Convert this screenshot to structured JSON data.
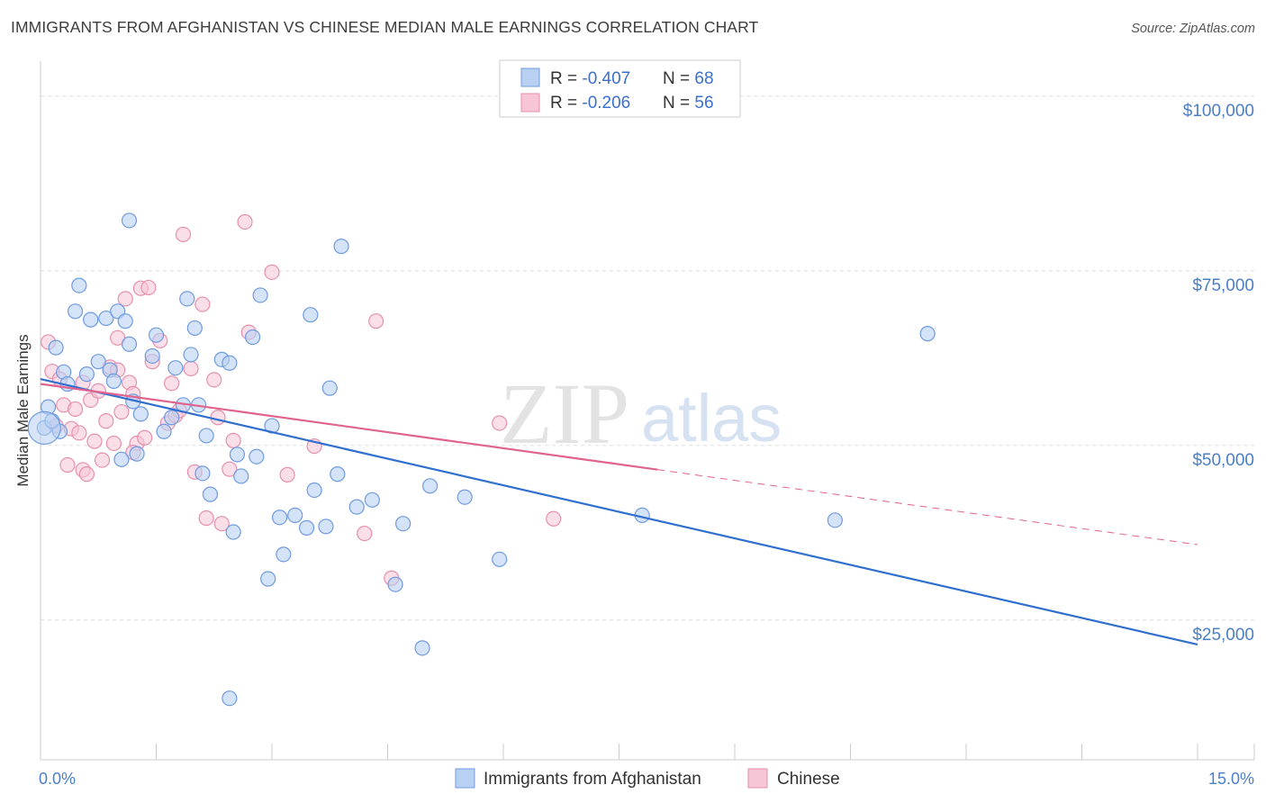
{
  "header": {
    "title": "IMMIGRANTS FROM AFGHANISTAN VS CHINESE MEDIAN MALE EARNINGS CORRELATION CHART",
    "source": "Source: ZipAtlas.com"
  },
  "watermark": {
    "zip": "ZIP",
    "atlas": "atlas"
  },
  "colors": {
    "blue_fill": "#b8d0f2",
    "blue_stroke": "#6f9be0",
    "blue_line": "#2f6fcf",
    "pink_fill": "#f7c5d6",
    "pink_stroke": "#e690ae",
    "pink_line": "#e0628e",
    "grid": "#dddddd",
    "tick_label": "#4a7fc8"
  },
  "legend": {
    "rows": [
      {
        "r_label": "R = ",
        "r_value": "-0.407",
        "n_label": "N = ",
        "n_value": "68"
      },
      {
        "r_label": "R = ",
        "r_value": "-0.206",
        "n_label": "N = ",
        "n_value": "56"
      }
    ]
  },
  "chart_data": {
    "type": "scatter",
    "title": "IMMIGRANTS FROM AFGHANISTAN VS CHINESE MEDIAN MALE EARNINGS CORRELATION CHART",
    "xlabel": "",
    "ylabel": "Median Male Earnings",
    "xlim": [
      0,
      15
    ],
    "ylim": [
      5000,
      105000
    ],
    "x_tick_labels": [
      "0.0%",
      "15.0%"
    ],
    "y_ticks": [
      25000,
      50000,
      75000,
      100000
    ],
    "y_tick_labels": [
      "$25,000",
      "$50,000",
      "$75,000",
      "$100,000"
    ],
    "grid": true,
    "legend_position": "top-center",
    "series": [
      {
        "name": "Immigrants from Afghanistan",
        "color": "#6f9be0",
        "trend": {
          "x": [
            0.0,
            15.0
          ],
          "y": [
            59500,
            21500
          ],
          "solid_until": 15.0
        },
        "points": [
          [
            0.05,
            52500
          ],
          [
            0.1,
            55500
          ],
          [
            0.2,
            64000
          ],
          [
            0.25,
            52000
          ],
          [
            0.3,
            60500
          ],
          [
            0.35,
            58800
          ],
          [
            0.45,
            69200
          ],
          [
            0.5,
            72900
          ],
          [
            0.65,
            68000
          ],
          [
            0.75,
            62000
          ],
          [
            0.85,
            68200
          ],
          [
            0.9,
            60800
          ],
          [
            0.95,
            59200
          ],
          [
            1.0,
            69200
          ],
          [
            1.05,
            48000
          ],
          [
            1.1,
            67800
          ],
          [
            1.15,
            64500
          ],
          [
            1.2,
            56300
          ],
          [
            1.25,
            48800
          ],
          [
            1.3,
            54500
          ],
          [
            1.15,
            82200
          ],
          [
            1.45,
            62800
          ],
          [
            1.5,
            65800
          ],
          [
            1.6,
            52000
          ],
          [
            1.7,
            54000
          ],
          [
            1.75,
            61100
          ],
          [
            1.85,
            55800
          ],
          [
            1.9,
            71000
          ],
          [
            1.95,
            63000
          ],
          [
            2.0,
            66800
          ],
          [
            2.05,
            55800
          ],
          [
            2.1,
            46000
          ],
          [
            2.15,
            51400
          ],
          [
            2.2,
            43000
          ],
          [
            2.35,
            62300
          ],
          [
            2.45,
            61800
          ],
          [
            2.5,
            37600
          ],
          [
            2.55,
            48700
          ],
          [
            2.6,
            45600
          ],
          [
            2.75,
            65500
          ],
          [
            2.8,
            48400
          ],
          [
            2.85,
            71500
          ],
          [
            2.95,
            30900
          ],
          [
            3.0,
            52800
          ],
          [
            3.1,
            39700
          ],
          [
            3.15,
            34400
          ],
          [
            3.3,
            40000
          ],
          [
            3.45,
            38200
          ],
          [
            3.5,
            68700
          ],
          [
            3.55,
            43600
          ],
          [
            3.7,
            38400
          ],
          [
            3.75,
            58200
          ],
          [
            3.85,
            45900
          ],
          [
            3.9,
            78500
          ],
          [
            4.1,
            41200
          ],
          [
            4.3,
            42200
          ],
          [
            4.6,
            30100
          ],
          [
            4.7,
            38800
          ],
          [
            4.95,
            21000
          ],
          [
            5.05,
            44200
          ],
          [
            5.5,
            42600
          ],
          [
            5.95,
            33700
          ],
          [
            7.8,
            40000
          ],
          [
            10.3,
            39300
          ],
          [
            11.5,
            66000
          ],
          [
            2.45,
            13800
          ],
          [
            0.15,
            53500
          ],
          [
            0.6,
            60200
          ]
        ]
      },
      {
        "name": "Chinese",
        "color": "#e690ae",
        "trend": {
          "x": [
            0.0,
            15.0
          ],
          "y": [
            58800,
            35800
          ],
          "solid_until": 8.0
        },
        "points": [
          [
            0.1,
            64800
          ],
          [
            0.15,
            60600
          ],
          [
            0.2,
            52800
          ],
          [
            0.25,
            59500
          ],
          [
            0.3,
            55800
          ],
          [
            0.35,
            47200
          ],
          [
            0.4,
            52400
          ],
          [
            0.45,
            55200
          ],
          [
            0.5,
            51800
          ],
          [
            0.55,
            46500
          ],
          [
            0.6,
            45900
          ],
          [
            0.65,
            56500
          ],
          [
            0.7,
            50600
          ],
          [
            0.75,
            57800
          ],
          [
            0.8,
            47900
          ],
          [
            0.85,
            53500
          ],
          [
            0.9,
            61200
          ],
          [
            0.95,
            50300
          ],
          [
            1.0,
            65400
          ],
          [
            1.05,
            54800
          ],
          [
            1.1,
            71000
          ],
          [
            1.15,
            59000
          ],
          [
            1.2,
            57400
          ],
          [
            1.25,
            50300
          ],
          [
            1.3,
            72500
          ],
          [
            1.35,
            51100
          ],
          [
            1.45,
            62000
          ],
          [
            1.55,
            65000
          ],
          [
            1.65,
            53200
          ],
          [
            1.7,
            58900
          ],
          [
            1.75,
            54300
          ],
          [
            1.8,
            55000
          ],
          [
            1.85,
            80200
          ],
          [
            1.95,
            61000
          ],
          [
            2.0,
            46200
          ],
          [
            2.1,
            70200
          ],
          [
            2.15,
            39600
          ],
          [
            2.25,
            59400
          ],
          [
            2.35,
            38800
          ],
          [
            2.45,
            46600
          ],
          [
            2.5,
            50700
          ],
          [
            2.65,
            82000
          ],
          [
            2.7,
            66200
          ],
          [
            3.0,
            74800
          ],
          [
            3.2,
            45800
          ],
          [
            3.55,
            49900
          ],
          [
            4.2,
            37400
          ],
          [
            4.35,
            67800
          ],
          [
            4.55,
            31000
          ],
          [
            5.95,
            53200
          ],
          [
            6.65,
            39500
          ],
          [
            1.0,
            60800
          ],
          [
            1.4,
            72600
          ],
          [
            0.55,
            59000
          ],
          [
            2.3,
            54000
          ],
          [
            1.2,
            49000
          ]
        ]
      }
    ]
  },
  "bottom_legend": {
    "items": [
      {
        "label": "Immigrants from Afghanistan"
      },
      {
        "label": "Chinese"
      }
    ]
  }
}
